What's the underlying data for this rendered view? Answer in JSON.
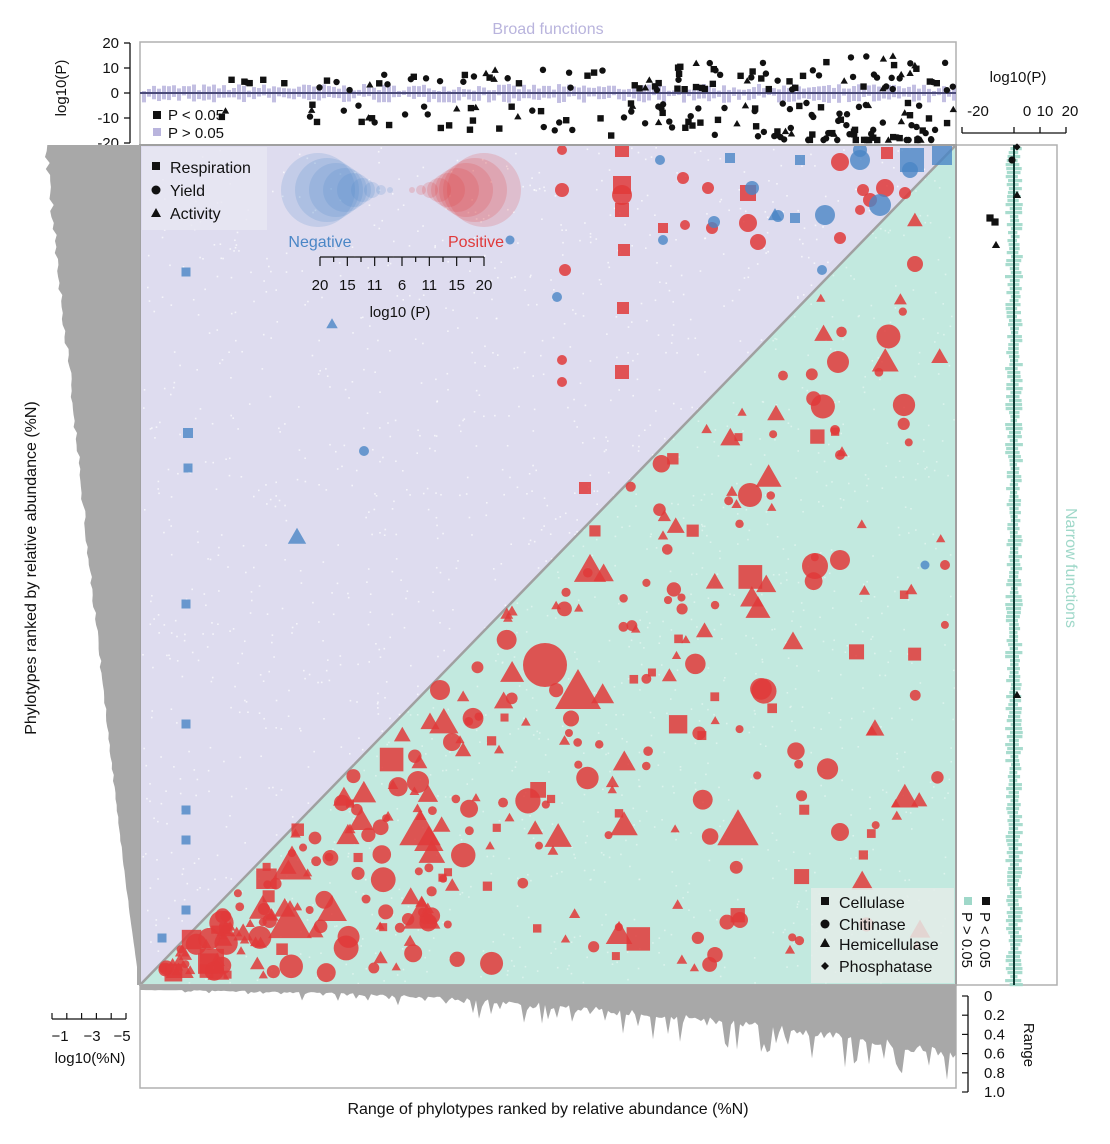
{
  "chart_data": {
    "type": "scatter",
    "panels": {
      "top": {
        "title": "Broad functions",
        "ylabel": "log10(P)",
        "yticks": [
          20,
          10,
          0,
          -10,
          -20
        ],
        "ylim": [
          -25,
          20
        ],
        "legend": [
          {
            "label": "P < 0.05",
            "color": "#111111"
          },
          {
            "label": "P > 0.05",
            "color": "#b9b4dd"
          }
        ]
      },
      "right": {
        "title": "Narrow functions",
        "xlabel": "log10(P)",
        "xticks": [
          -20,
          0,
          10,
          20
        ],
        "xlim": [
          -20,
          20
        ],
        "legend": [
          {
            "label": "P < 0.05",
            "color": "#111111"
          },
          {
            "label": "P > 0.05",
            "color": "#9fd8c9"
          }
        ]
      },
      "main": {
        "xlabel": "Range of phylotypes ranked by relative abundance (%N)",
        "ylabel": "Phylotypes ranked by relative abundance (%N)",
        "upper_legend": [
          {
            "label": "Respiration",
            "shape": "square"
          },
          {
            "label": "Yield",
            "shape": "circle"
          },
          {
            "label": "Activity",
            "shape": "triangle"
          }
        ],
        "lower_legend": [
          {
            "label": "Cellulase",
            "shape": "square"
          },
          {
            "label": "Chitinase",
            "shape": "circle"
          },
          {
            "label": "Hemicellulase",
            "shape": "triangle"
          },
          {
            "label": "Phosphatase",
            "shape": "diamond"
          }
        ],
        "colorbar": {
          "negative_label": "Negative",
          "positive_label": "Positive",
          "negative_color": "#4a86c6",
          "positive_color": "#e0393a",
          "ticks": [
            "20",
            "15",
            "11",
            "6",
            "11",
            "15",
            "20"
          ],
          "label": "log10 (P)"
        }
      },
      "left_margin": {
        "xlabel": "log10(%N)",
        "xticks": [
          "−1",
          "−3",
          "−5"
        ]
      },
      "bottom_margin": {
        "ylabel": "Range",
        "yticks": [
          "0",
          "0.2",
          "0.4",
          "0.6",
          "0.8",
          "1.0"
        ]
      }
    },
    "colors": {
      "broad_bg": "#dedcef",
      "narrow_bg": "#c2e9df",
      "negative": "#4a86c6",
      "positive": "#e0393a",
      "grey": "#a8a8a8",
      "broad_legend": "#b9b4dd",
      "narrow_legend": "#9fd8c9"
    }
  }
}
